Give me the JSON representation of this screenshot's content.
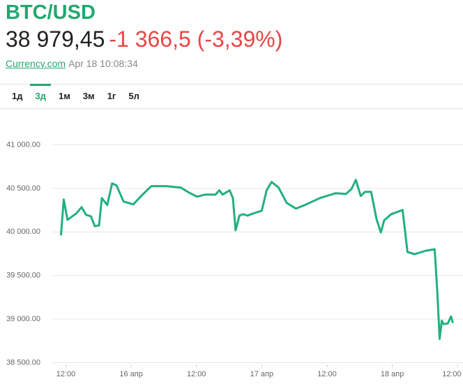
{
  "header": {
    "title": "BTC/USD",
    "price": "38 979,45",
    "change": "-1 366,5 (-3,39%)",
    "source": "Currency.com",
    "timestamp": "Apr 18 10:08:34"
  },
  "tabs": {
    "items": [
      "1д",
      "3д",
      "1м",
      "3м",
      "1г",
      "5л"
    ],
    "active": 1
  },
  "chart_data": {
    "type": "line",
    "color": "#22b07d",
    "grid": true,
    "x": [
      -12.9,
      -12.4,
      -11.7,
      -10.1,
      -9.1,
      -8.3,
      -7.4,
      -6.7,
      -5.9,
      -5.4,
      -4.4,
      -3.5,
      -2.7,
      -1.4,
      0.4,
      2.1,
      3.7,
      6.5,
      9.1,
      10.6,
      12.1,
      13.6,
      15.5,
      16.2,
      16.8,
      18.1,
      18.7,
      19.2,
      19.9,
      20.6,
      21.4,
      22.4,
      24.0,
      24.9,
      25.8,
      27.1,
      28.6,
      30.3,
      32.2,
      34.7,
      37.6,
      39.5,
      40.5,
      41.3,
      42.2,
      43.0,
      44.1,
      45.1,
      45.9,
      46.5,
      47.8,
      49.9,
      50.8,
      52.1,
      54.2,
      55.8,
      56.3,
      56.7,
      57.1,
      57.4,
      58.2,
      58.8,
      59.1
    ],
    "values": [
      39971,
      40373,
      40140,
      40212,
      40285,
      40196,
      40180,
      40067,
      40076,
      40389,
      40309,
      40558,
      40534,
      40349,
      40317,
      40429,
      40526,
      40526,
      40510,
      40453,
      40405,
      40429,
      40429,
      40478,
      40429,
      40478,
      40389,
      40019,
      40188,
      40204,
      40188,
      40212,
      40244,
      40478,
      40574,
      40510,
      40333,
      40268,
      40317,
      40389,
      40445,
      40437,
      40494,
      40598,
      40413,
      40461,
      40461,
      40148,
      39995,
      40132,
      40204,
      40252,
      39770,
      39746,
      39786,
      39802,
      39288,
      38773,
      38982,
      38942,
      38950,
      39030,
      38966
    ],
    "xlim": [
      -14.5,
      61
    ],
    "ylim": [
      38480,
      41380
    ],
    "xticks": [
      {
        "value": -12,
        "label": "12:00"
      },
      {
        "value": 0,
        "label": "16 апр"
      },
      {
        "value": 12,
        "label": "12:00"
      },
      {
        "value": 24,
        "label": "17 апр"
      },
      {
        "value": 36,
        "label": "12:00"
      },
      {
        "value": 48,
        "label": "18 апр"
      },
      {
        "value": 60,
        "label": "12:00"
      }
    ],
    "yticks": [
      {
        "value": 38500,
        "label": "38 500.00"
      },
      {
        "value": 39000,
        "label": "39 000.00"
      },
      {
        "value": 39500,
        "label": "39 500.00"
      },
      {
        "value": 40000,
        "label": "40 000.00"
      },
      {
        "value": 40500,
        "label": "40 500.00"
      },
      {
        "value": 41000,
        "label": "41 000.00"
      }
    ]
  }
}
